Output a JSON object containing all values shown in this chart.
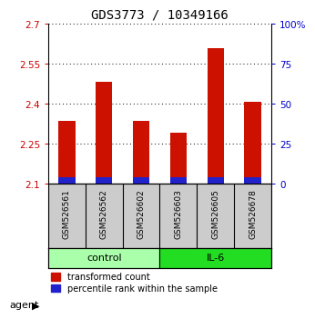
{
  "title": "GDS3773 / 10349166",
  "samples": [
    "GSM526561",
    "GSM526562",
    "GSM526602",
    "GSM526603",
    "GSM526605",
    "GSM526678"
  ],
  "red_values": [
    2.335,
    2.483,
    2.335,
    2.29,
    2.61,
    2.408
  ],
  "blue_values": [
    0.025,
    0.025,
    0.025,
    0.025,
    0.025,
    0.025
  ],
  "ymin": 2.1,
  "ymax": 2.7,
  "yticks_left": [
    2.1,
    2.25,
    2.4,
    2.55,
    2.7
  ],
  "yticks_right_vals": [
    0,
    25,
    50,
    75,
    100
  ],
  "groups": [
    {
      "label": "control",
      "start": 0,
      "end": 3,
      "color": "#aaffaa"
    },
    {
      "label": "IL-6",
      "start": 3,
      "end": 6,
      "color": "#22dd22"
    }
  ],
  "sample_box_color": "#cccccc",
  "bar_color_red": "#cc1100",
  "bar_color_blue": "#2222cc",
  "bar_width": 0.45,
  "grid_color": "#000000",
  "left_axis_color": "#cc0000",
  "right_axis_color": "#0000cc",
  "title_fontsize": 10,
  "tick_fontsize": 7.5,
  "sample_fontsize": 6.5,
  "legend_fontsize": 7,
  "group_fontsize": 8,
  "agent_fontsize": 8,
  "background_color": "#ffffff"
}
